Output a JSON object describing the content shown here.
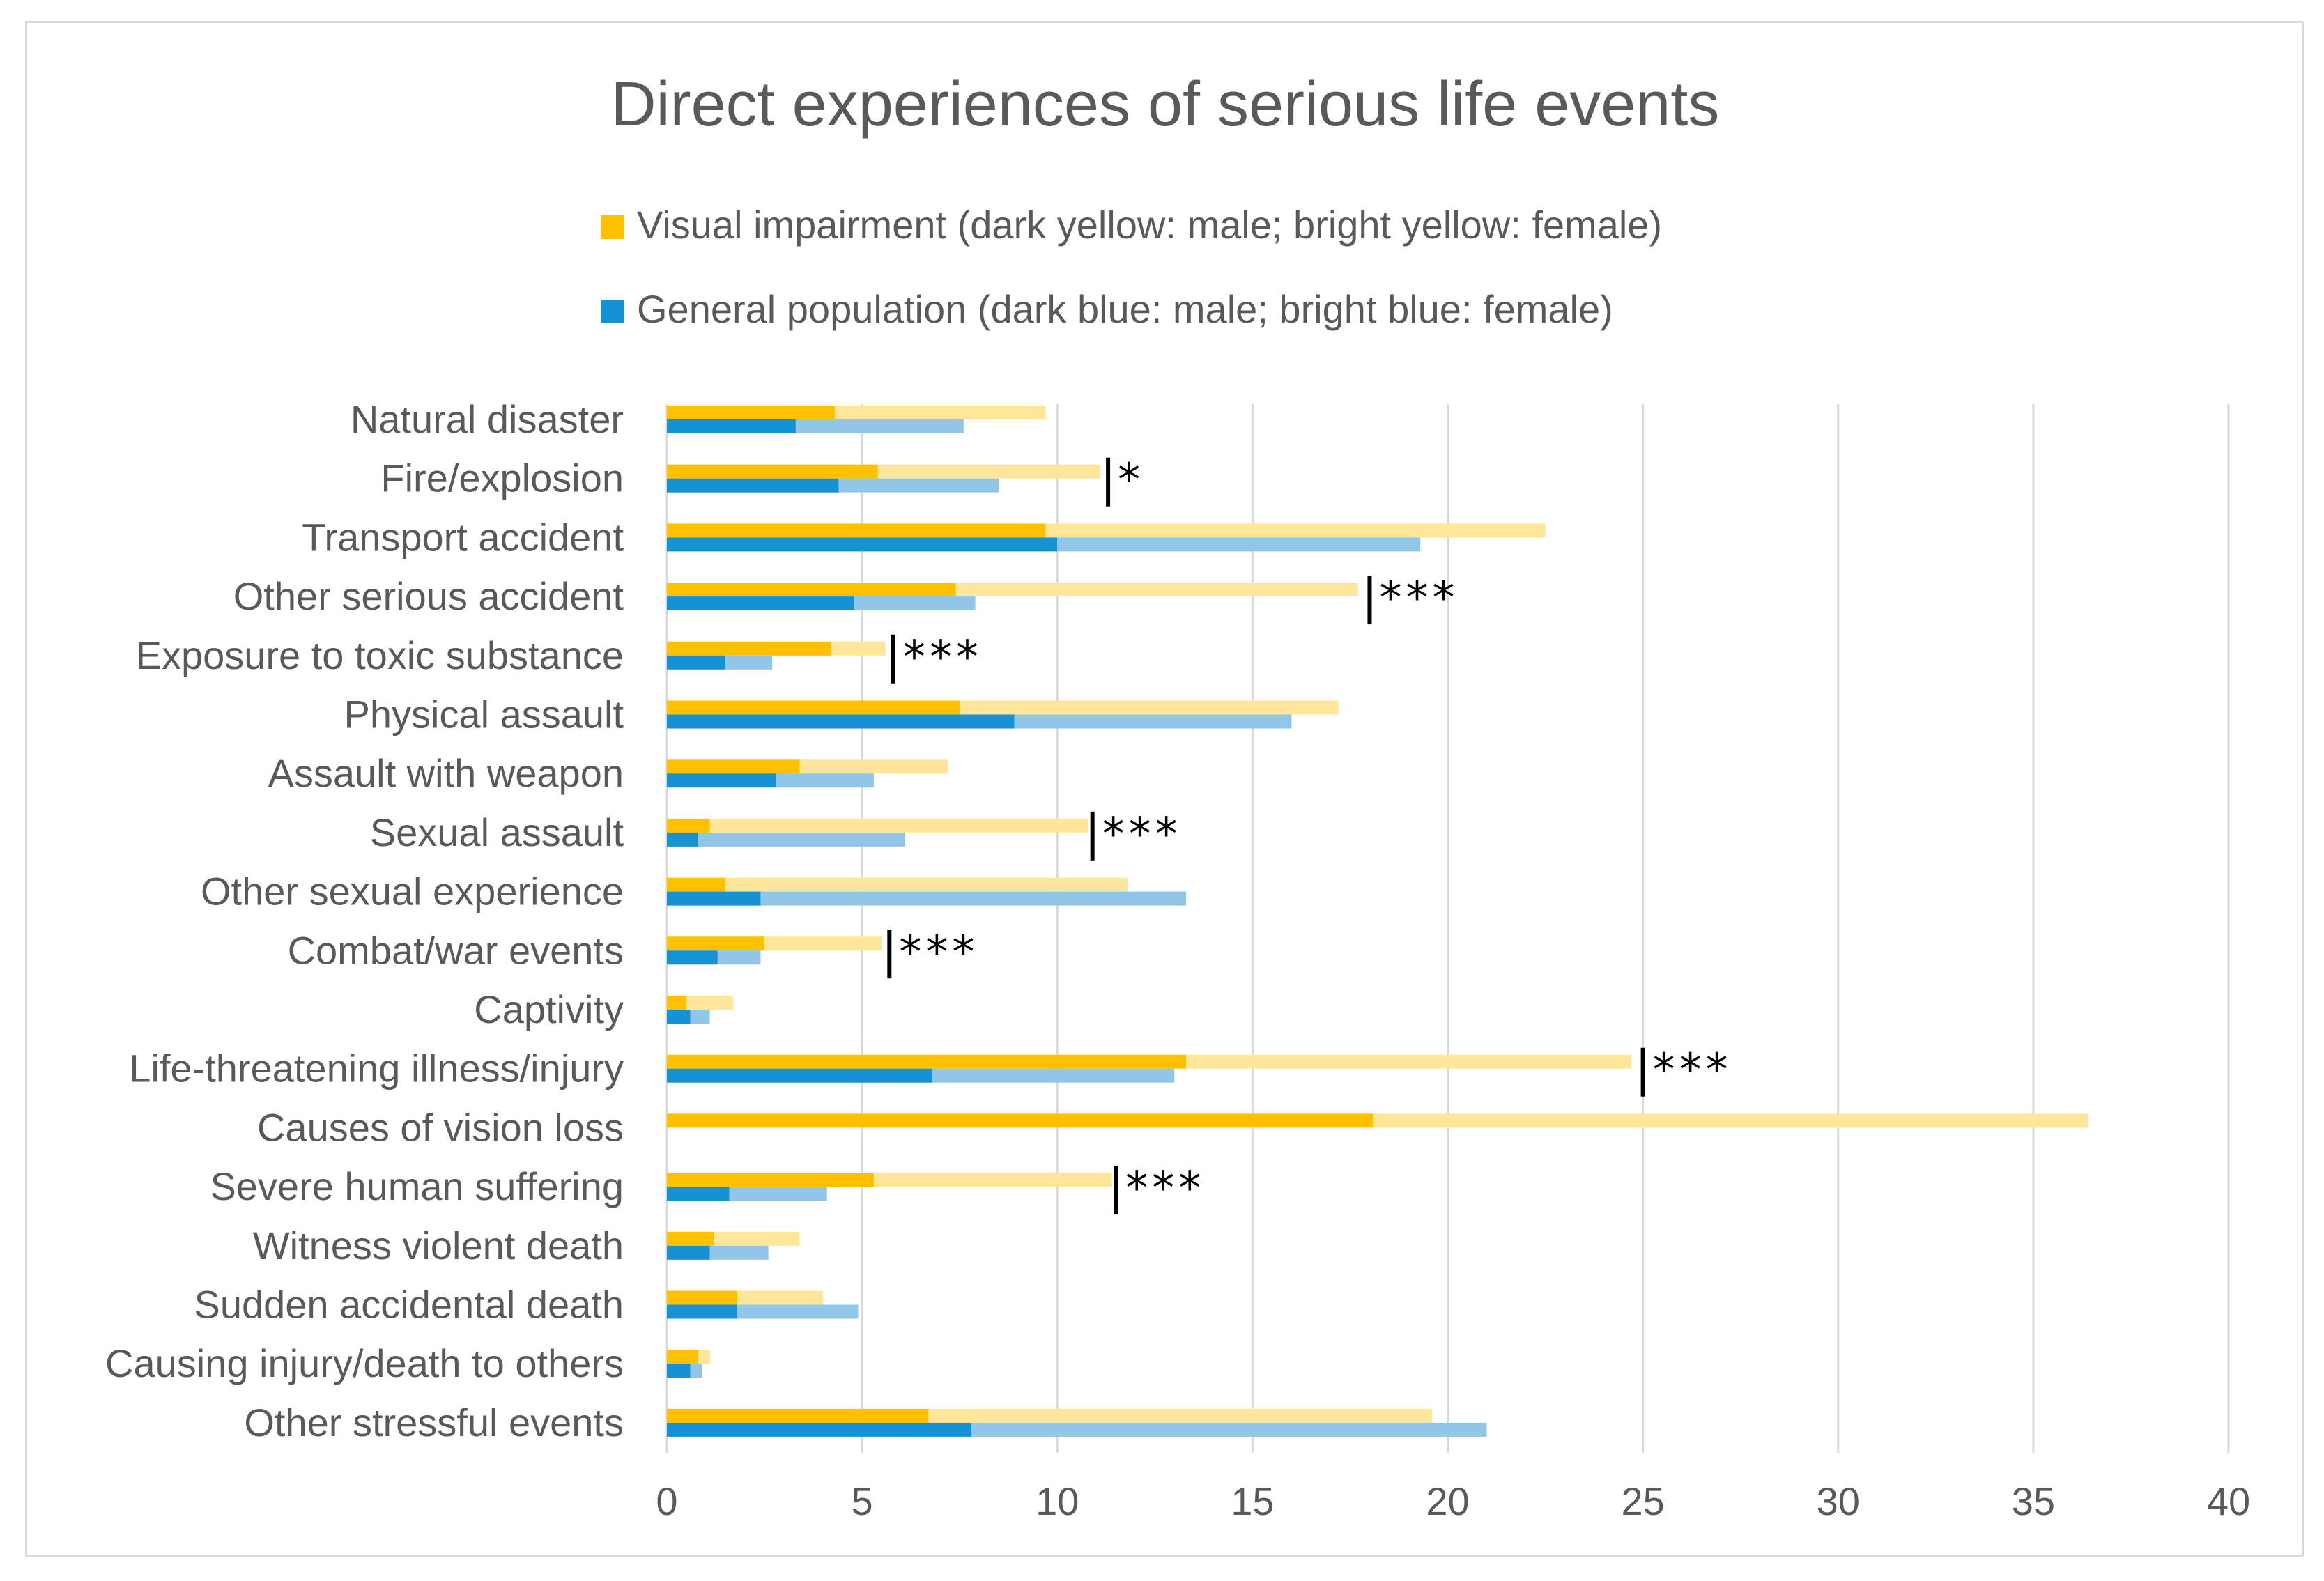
{
  "chart_data": {
    "type": "bar",
    "orientation": "horizontal",
    "stacked": true,
    "title": "Direct experiences of serious life events",
    "legend": [
      {
        "label": "Visual impairment (dark yellow: male; bright yellow: female)",
        "color": "#FFC000"
      },
      {
        "label": "General population (dark blue: male; bright blue: female)",
        "color": "#1492D4"
      }
    ],
    "colors": {
      "vi_male": "#FFC000",
      "vi_female": "#FFE699",
      "gp_male": "#1492D4",
      "gp_female": "#91C6E8",
      "grid": "#d9d9d9",
      "text": "#595959",
      "marker": "#000000"
    },
    "xlim": [
      0,
      40
    ],
    "xticks": [
      0,
      5,
      10,
      15,
      20,
      25,
      30,
      35,
      40
    ],
    "grid": true,
    "categories": [
      "Natural disaster",
      "Fire/explosion",
      "Transport accident",
      "Other serious accident",
      "Exposure to toxic substance",
      "Physical assault",
      "Assault with weapon",
      "Sexual assault",
      "Other sexual experience",
      "Combat/war events",
      "Captivity",
      "Life-threatening illness/injury",
      "Causes of vision loss",
      "Severe human suffering",
      "Witness violent death",
      "Sudden accidental death",
      "Causing injury/death to others",
      "Other stressful events"
    ],
    "series": [
      {
        "name": "Visual impairment - male",
        "group": "vi",
        "stack": "male",
        "values": [
          4.3,
          5.4,
          9.7,
          7.4,
          4.2,
          7.5,
          3.4,
          1.1,
          1.5,
          2.5,
          0.5,
          13.3,
          18.1,
          5.3,
          1.2,
          1.8,
          0.8,
          6.7
        ]
      },
      {
        "name": "Visual impairment - female",
        "group": "vi",
        "stack": "female",
        "values": [
          5.4,
          5.7,
          12.8,
          10.3,
          1.4,
          9.7,
          3.8,
          9.7,
          10.3,
          3.0,
          1.2,
          11.4,
          18.3,
          6.1,
          2.2,
          2.2,
          0.3,
          12.9
        ]
      },
      {
        "name": "General population - male",
        "group": "gp",
        "stack": "male",
        "values": [
          3.3,
          4.4,
          10.0,
          4.8,
          1.5,
          8.9,
          2.8,
          0.8,
          2.4,
          1.3,
          0.6,
          6.8,
          null,
          1.6,
          1.1,
          1.8,
          0.6,
          7.8
        ]
      },
      {
        "name": "General population - female",
        "group": "gp",
        "stack": "female",
        "values": [
          4.3,
          4.1,
          9.3,
          3.1,
          1.2,
          7.1,
          2.5,
          5.3,
          10.9,
          1.1,
          0.5,
          6.2,
          null,
          2.5,
          1.5,
          3.1,
          0.3,
          13.2
        ]
      }
    ],
    "annotations": [
      {
        "category": "Fire/explosion",
        "at": 11.3,
        "text": "*"
      },
      {
        "category": "Other serious accident",
        "at": 18.0,
        "text": "***"
      },
      {
        "category": "Exposure to toxic substance",
        "at": 5.8,
        "text": "***"
      },
      {
        "category": "Sexual assault",
        "at": 10.9,
        "text": "***"
      },
      {
        "category": "Combat/war events",
        "at": 5.7,
        "text": "***"
      },
      {
        "category": "Life-threatening illness/injury",
        "at": 25.0,
        "text": "***"
      },
      {
        "category": "Severe human suffering",
        "at": 11.5,
        "text": "***"
      }
    ]
  }
}
